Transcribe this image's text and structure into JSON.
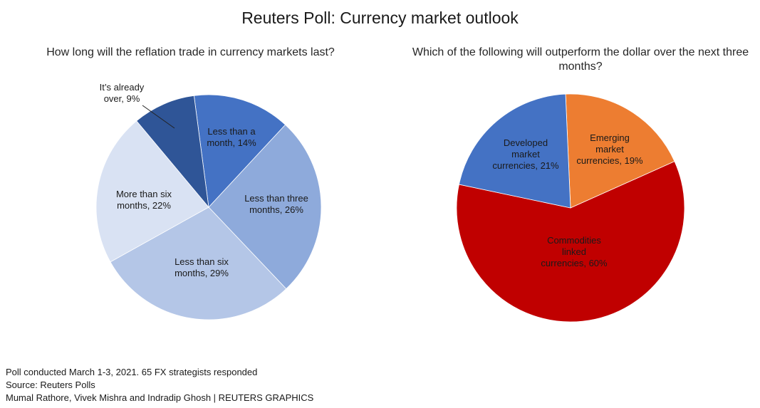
{
  "title": "Reuters Poll: Currency market outlook",
  "footer": {
    "note": "Poll conducted March 1-3, 2021. 65 FX strategists responded",
    "source": "Source: Reuters Polls",
    "credit": "Mumal Rathore, Vivek Mishra and Indradip Ghosh | REUTERS GRAPHICS"
  },
  "chart_data": [
    {
      "type": "pie",
      "title": "How long will the reflation trade in currency markets last?",
      "slices": [
        {
          "label": "Less than a month",
          "value": 14,
          "color": "#4472c4",
          "text_lines": [
            "Less than a",
            "month, 14%"
          ]
        },
        {
          "label": "Less than three months",
          "value": 26,
          "color": "#8eaadb",
          "text_lines": [
            "Less than three",
            "months, 26%"
          ]
        },
        {
          "label": "Less than six months",
          "value": 29,
          "color": "#b4c6e7",
          "text_lines": [
            "Less than six",
            "months, 29%"
          ]
        },
        {
          "label": "More than six months",
          "value": 22,
          "color": "#d9e2f3",
          "text_lines": [
            "More than six",
            "months, 22%"
          ]
        },
        {
          "label": "It's already over",
          "value": 9,
          "color": "#2f5597",
          "text_lines": [
            "It’s already",
            "over, 9%"
          ]
        }
      ]
    },
    {
      "type": "pie",
      "title": "Which of the following will outperform the dollar over the next three months?",
      "slices": [
        {
          "label": "Emerging market currencies",
          "value": 19,
          "color": "#ed7d31",
          "text_lines": [
            "Emerging",
            "market",
            "currencies, 19%"
          ]
        },
        {
          "label": "Commodities linked currencies",
          "value": 60,
          "color": "#c00000",
          "text_lines": [
            "Commodities",
            "linked",
            "currencies, 60%"
          ]
        },
        {
          "label": "Developed market currencies",
          "value": 21,
          "color": "#4472c4",
          "text_lines": [
            "Developed",
            "market",
            "currencies, 21%"
          ]
        }
      ]
    }
  ]
}
